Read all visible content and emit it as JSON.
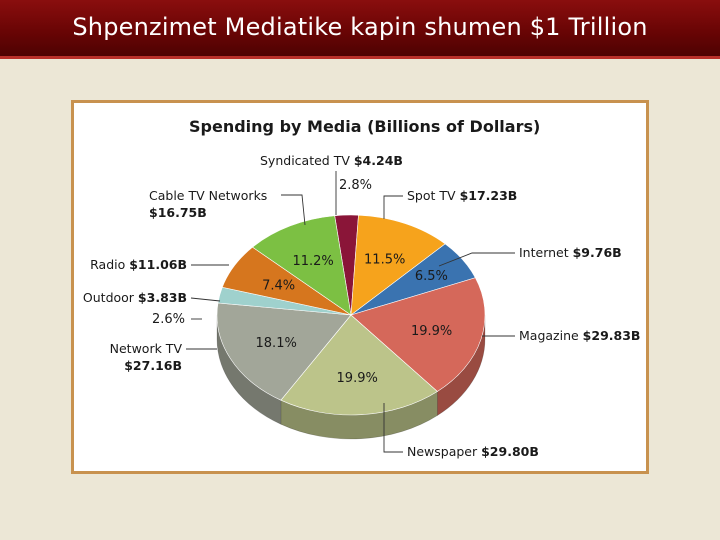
{
  "slide": {
    "title": "Shpenzimet Mediatike kapin shumen $1 Trillion"
  },
  "chart_data": {
    "type": "pie",
    "title": "Spending by Media (Billions of Dollars)",
    "legend": "none",
    "slices": [
      {
        "category": "Syndicated TV",
        "value_label": "$4.24B",
        "value": 4.24,
        "percent_label": "2.8%",
        "percent": 2.8,
        "color": "#8a1538"
      },
      {
        "category": "Spot TV",
        "value_label": "$17.23B",
        "value": 17.23,
        "percent_label": "11.5%",
        "percent": 11.5,
        "color": "#f6a31c"
      },
      {
        "category": "Internet",
        "value_label": "$9.76B",
        "value": 9.76,
        "percent_label": "6.5%",
        "percent": 6.5,
        "color": "#3a73b0"
      },
      {
        "category": "Magazine",
        "value_label": "$29.83B",
        "value": 29.83,
        "percent_label": "19.9%",
        "percent": 19.9,
        "color": "#d5685a"
      },
      {
        "category": "Newspaper",
        "value_label": "$29.80B",
        "value": 29.8,
        "percent_label": "19.9%",
        "percent": 19.9,
        "color": "#bcc48a"
      },
      {
        "category": "Network TV",
        "value_label": "$27.16B",
        "value": 27.16,
        "percent_label": "18.1%",
        "percent": 18.1,
        "color": "#a2a699"
      },
      {
        "category": "Outdoor",
        "value_label": "$3.83B",
        "value": 3.83,
        "percent_label": "2.6%",
        "percent": 2.6,
        "color": "#9fd1cd"
      },
      {
        "category": "Radio",
        "value_label": "$11.06B",
        "value": 11.06,
        "percent_label": "7.4%",
        "percent": 7.4,
        "color": "#d6761e"
      },
      {
        "category": "Cable TV Networks",
        "value_label": "$16.75B",
        "value": 16.75,
        "percent_label": "11.2%",
        "percent": 11.2,
        "color": "#7cc043"
      }
    ]
  }
}
